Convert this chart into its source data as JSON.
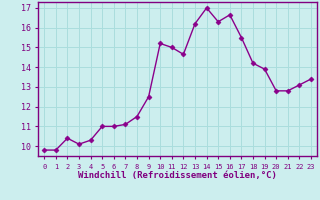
{
  "x": [
    0,
    1,
    2,
    3,
    4,
    5,
    6,
    7,
    8,
    9,
    10,
    11,
    12,
    13,
    14,
    15,
    16,
    17,
    18,
    19,
    20,
    21,
    22,
    23
  ],
  "y": [
    9.8,
    9.8,
    10.4,
    10.1,
    10.3,
    11.0,
    11.0,
    11.1,
    11.5,
    12.5,
    15.2,
    15.0,
    14.65,
    16.2,
    17.0,
    16.3,
    16.65,
    15.5,
    14.2,
    13.9,
    12.8,
    12.8,
    13.1,
    13.4
  ],
  "line_color": "#8B008B",
  "marker": "D",
  "markersize": 2.5,
  "linewidth": 1.0,
  "bg_color": "#cceeee",
  "grid_color": "#aadddd",
  "xlabel": "Windchill (Refroidissement éolien,°C)",
  "xlabel_fontsize": 6.5,
  "ytick_min": 10,
  "ytick_max": 17,
  "ytick_step": 1,
  "xlim": [
    -0.5,
    23.5
  ],
  "ylim": [
    9.5,
    17.3
  ],
  "spine_color": "#800080",
  "tick_color": "#800080",
  "label_color": "#800080"
}
